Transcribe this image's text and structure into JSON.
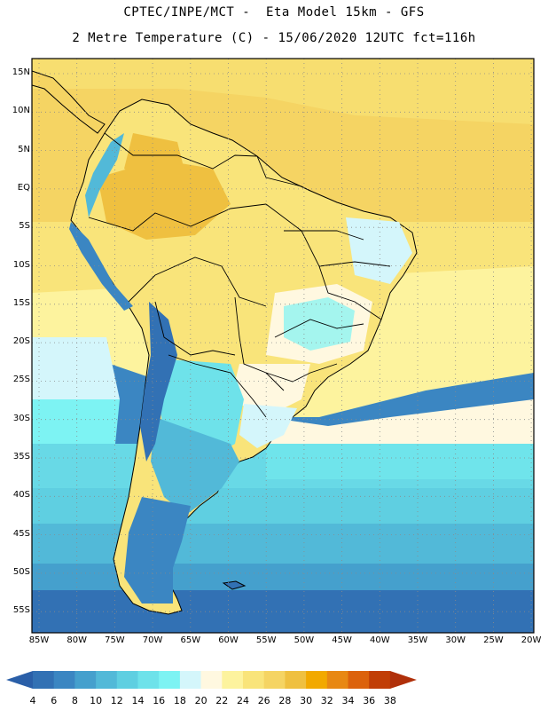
{
  "header": {
    "line1": "CPTEC/INPE/MCT -  Eta Model 15km - GFS",
    "line2": "2 Metre Temperature (C) - 15/06/2020 12UTC fct=116h"
  },
  "map": {
    "lat_labels": [
      "15N",
      "10N",
      "5N",
      "EQ",
      "5S",
      "10S",
      "15S",
      "20S",
      "25S",
      "30S",
      "35S",
      "40S",
      "45S",
      "50S",
      "55S"
    ],
    "lon_labels": [
      "85W",
      "80W",
      "75W",
      "70W",
      "65W",
      "60W",
      "55W",
      "50W",
      "45W",
      "40W",
      "35W",
      "30W",
      "25W",
      "20W"
    ],
    "grid": "dotted"
  },
  "colorbar": {
    "labels": [
      "4",
      "6",
      "8",
      "10",
      "12",
      "14",
      "16",
      "18",
      "20",
      "22",
      "24",
      "26",
      "28",
      "30",
      "32",
      "34",
      "36",
      "38"
    ],
    "colors": [
      "#2a5fa8",
      "#3271b4",
      "#3b86c2",
      "#45a0cd",
      "#52b9d8",
      "#5fcfe1",
      "#6ee2ea",
      "#7df3f3",
      "#d4f6fb",
      "#fff8e0",
      "#fdf39e",
      "#f9e47a",
      "#f5d463",
      "#efc040",
      "#f2a900",
      "#e88813",
      "#dc620c",
      "#c13e06",
      "#b0300a"
    ]
  }
}
